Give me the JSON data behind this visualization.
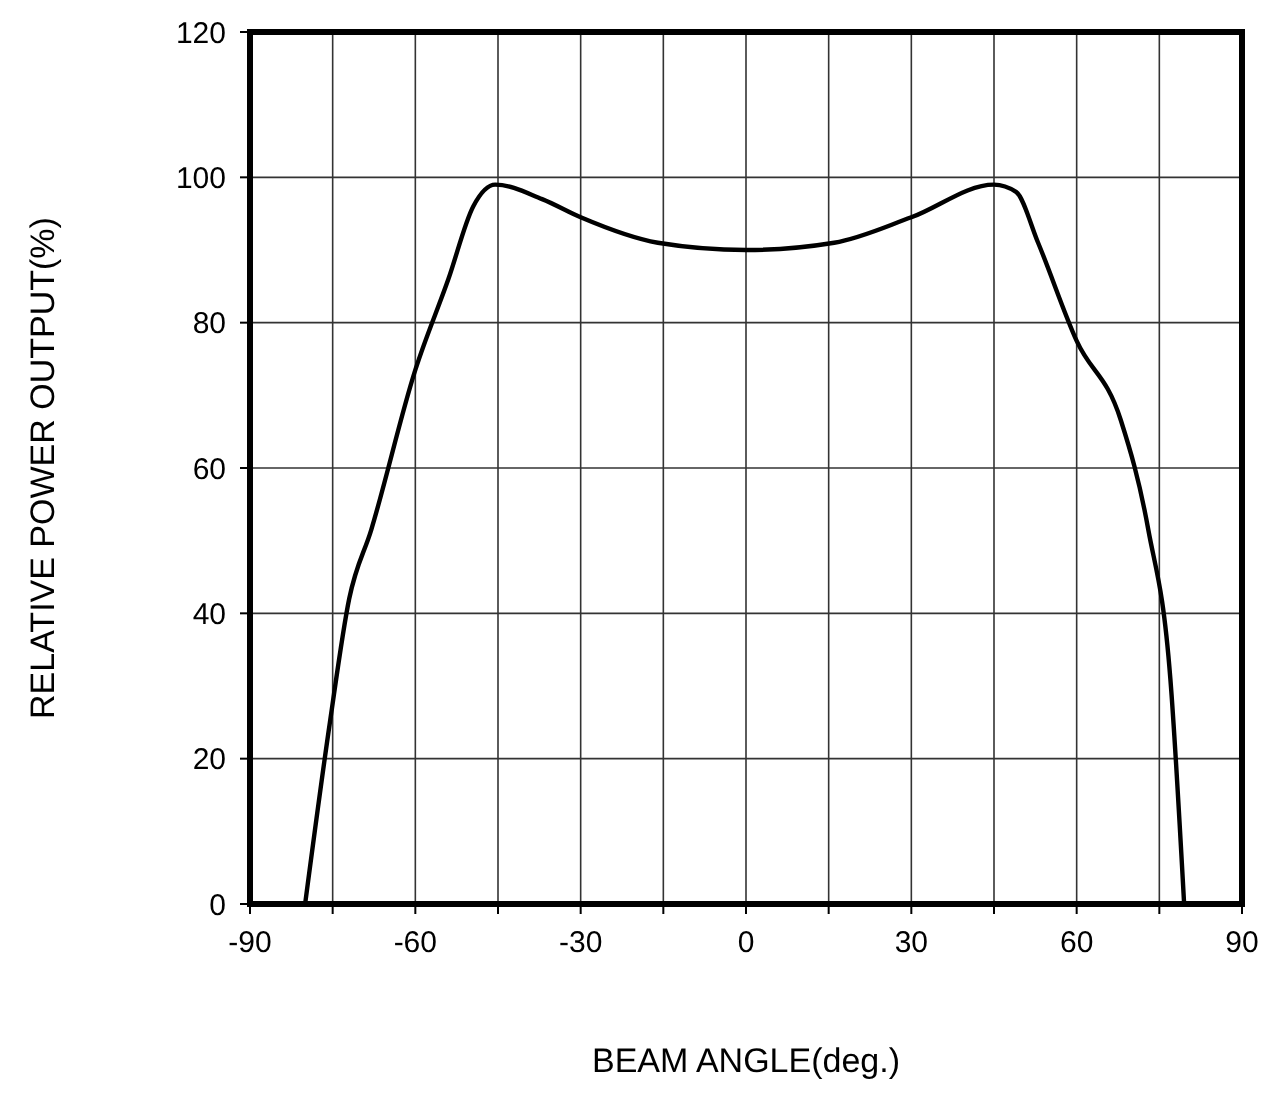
{
  "chart_data": {
    "type": "line",
    "xlabel": "BEAM ANGLE(deg.)",
    "ylabel": "RELATIVE POWER OUTPUT(%)",
    "xlim": [
      -90,
      90
    ],
    "xticks": [
      -90,
      {
        "value": -75,
        "label": null
      },
      -60,
      {
        "value": -45,
        "label": null
      },
      -30,
      {
        "value": -15,
        "label": null
      },
      0,
      {
        "value": 15,
        "label": null
      },
      30,
      {
        "value": 45,
        "label": null
      },
      60,
      {
        "value": 75,
        "label": null
      },
      90
    ],
    "ylim": [
      0,
      120
    ],
    "yticks": [
      0,
      20,
      40,
      60,
      80,
      100,
      120
    ],
    "grid": true,
    "marker": "none",
    "line_style": "solid",
    "series": [
      {
        "color": "#000000",
        "x": [
          -80,
          -75.5,
          -72,
          -68,
          -60,
          -54,
          -49.5,
          -45.5,
          -37,
          -30,
          -16,
          0,
          16,
          30,
          45,
          49,
          53,
          60,
          68,
          73,
          77,
          79.5
        ],
        "values": [
          0,
          25,
          42,
          51.5,
          73.5,
          86,
          96,
          99,
          97,
          94.5,
          91,
          90,
          91,
          94.5,
          99,
          98,
          91,
          77.5,
          66.6,
          51.5,
          31,
          0
        ]
      }
    ]
  }
}
